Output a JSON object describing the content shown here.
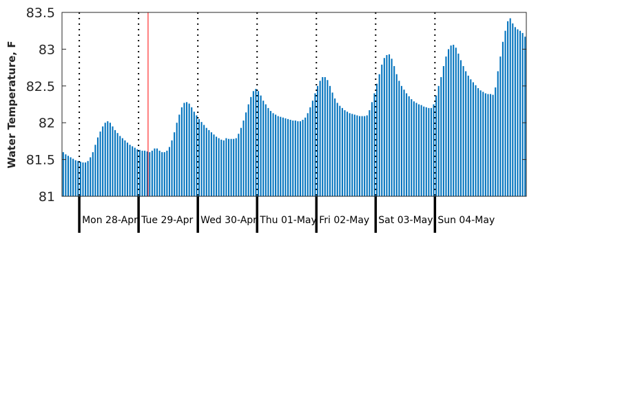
{
  "chart_data": {
    "type": "bar",
    "title": "",
    "xlabel": "",
    "ylabel": "Water Temperature, F",
    "ylim": [
      81,
      83.5
    ],
    "yticks": [
      "81",
      "81.5",
      "82",
      "82.5",
      "83",
      "83.5"
    ],
    "grid": false,
    "bar_color": "#0072bd",
    "marker_color": "#ff0000",
    "day_labels": [
      "Mon 28-Apr",
      "Tue 29-Apr",
      "Wed 30-Apr",
      "Thu 01-May",
      "Fri 02-May",
      "Sat 03-May",
      "Sun 04-May"
    ],
    "samples_per_day": 24,
    "start_hour_offset": 7,
    "current_time_marker_index": 35,
    "values": [
      81.6,
      81.57,
      81.55,
      81.53,
      81.51,
      81.49,
      81.48,
      81.47,
      81.46,
      81.46,
      81.48,
      81.53,
      81.6,
      81.7,
      81.8,
      81.88,
      81.95,
      82.0,
      82.02,
      82.0,
      81.95,
      81.9,
      81.86,
      81.82,
      81.79,
      81.76,
      81.73,
      81.7,
      81.68,
      81.66,
      81.64,
      81.63,
      81.62,
      81.62,
      81.61,
      81.6,
      81.62,
      81.65,
      81.65,
      81.62,
      81.6,
      81.6,
      81.62,
      81.67,
      81.76,
      81.87,
      82.0,
      82.11,
      82.21,
      82.27,
      82.28,
      82.26,
      82.21,
      82.15,
      82.1,
      82.05,
      82.01,
      81.97,
      81.93,
      81.9,
      81.87,
      81.84,
      81.81,
      81.79,
      81.77,
      81.76,
      81.79,
      81.78,
      81.78,
      81.78,
      81.79,
      81.85,
      81.93,
      82.03,
      82.14,
      82.25,
      82.35,
      82.43,
      82.46,
      82.43,
      82.37,
      82.3,
      82.25,
      82.2,
      82.16,
      82.13,
      82.11,
      82.09,
      82.08,
      82.07,
      82.06,
      82.05,
      82.04,
      82.03,
      82.03,
      82.02,
      82.02,
      82.04,
      82.07,
      82.13,
      82.21,
      82.3,
      82.4,
      82.5,
      82.57,
      82.62,
      82.62,
      82.58,
      82.5,
      82.41,
      82.33,
      82.27,
      82.23,
      82.2,
      82.17,
      82.15,
      82.13,
      82.12,
      82.11,
      82.1,
      82.09,
      82.09,
      82.09,
      82.1,
      82.17,
      82.28,
      82.4,
      82.53,
      82.66,
      82.79,
      82.88,
      82.92,
      82.93,
      82.87,
      82.77,
      82.66,
      82.57,
      82.5,
      82.45,
      82.4,
      82.36,
      82.32,
      82.29,
      82.27,
      82.25,
      82.24,
      82.22,
      82.21,
      82.2,
      82.2,
      82.25,
      82.37,
      82.5,
      82.62,
      82.77,
      82.9,
      83.0,
      83.05,
      83.06,
      83.02,
      82.94,
      82.85,
      82.77,
      82.7,
      82.64,
      82.59,
      82.55,
      82.51,
      82.47,
      82.44,
      82.42,
      82.4,
      82.39,
      82.39,
      82.38,
      82.48,
      82.7,
      82.9,
      83.1,
      83.25,
      83.38,
      83.42,
      83.35,
      83.3,
      83.27,
      83.25,
      83.22,
      83.17
    ]
  }
}
